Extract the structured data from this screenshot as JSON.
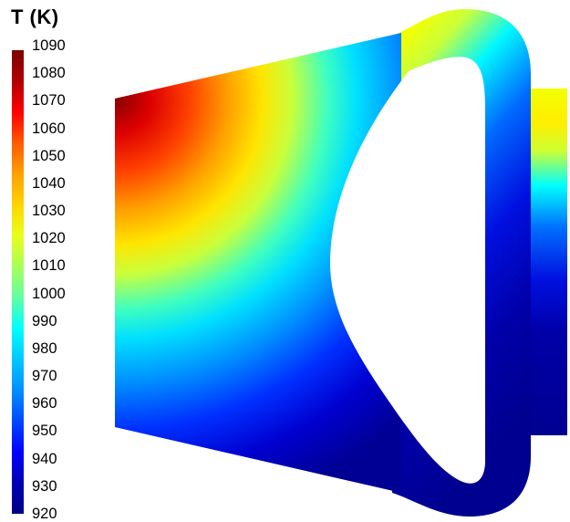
{
  "colorbar": {
    "title": "T (K)",
    "ticks": [
      "1090",
      "1080",
      "1070",
      "1060",
      "1050",
      "1040",
      "1030",
      "1020",
      "1010",
      "1000",
      "990",
      "980",
      "970",
      "960",
      "950",
      "940",
      "930",
      "920"
    ],
    "min": 920,
    "max": 1090,
    "colors": [
      "#7a0000",
      "#b30000",
      "#ff0000",
      "#ff5a00",
      "#ffa000",
      "#ffd400",
      "#e8ff1a",
      "#a8ff5a",
      "#60ffa0",
      "#00ffff",
      "#00c8ff",
      "#0090ff",
      "#0048ff",
      "#0000ff",
      "#0000b4",
      "#000085"
    ]
  }
}
